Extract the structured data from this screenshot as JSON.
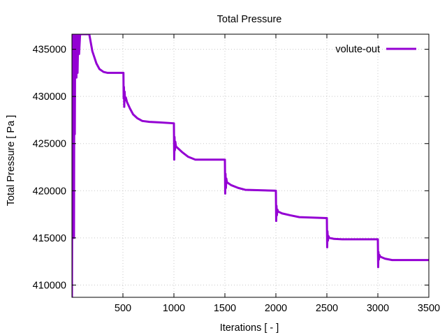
{
  "chart_data": {
    "type": "line",
    "title": "Total Pressure",
    "xlabel": "Iterations [ - ]",
    "ylabel": "Total Pressure [ Pa ]",
    "xlim": [
      0,
      3500
    ],
    "ylim": [
      408700,
      436600
    ],
    "grid": true,
    "legend_position": "top-right",
    "x_ticks": [
      {
        "value": 500,
        "label": "500"
      },
      {
        "value": 1000,
        "label": "1000"
      },
      {
        "value": 1500,
        "label": "1500"
      },
      {
        "value": 2000,
        "label": "2000"
      },
      {
        "value": 2500,
        "label": "2500"
      },
      {
        "value": 3000,
        "label": "3000"
      },
      {
        "value": 3500,
        "label": "3500"
      }
    ],
    "y_ticks": [
      {
        "value": 410000,
        "label": "410000"
      },
      {
        "value": 415000,
        "label": "415000"
      },
      {
        "value": 420000,
        "label": "420000"
      },
      {
        "value": 425000,
        "label": "425000"
      },
      {
        "value": 430000,
        "label": "430000"
      },
      {
        "value": 435000,
        "label": "435000"
      }
    ],
    "series": [
      {
        "name": "volute-out",
        "color": "#9400d3",
        "points": [
          [
            0,
            408700
          ],
          [
            8,
            436600
          ],
          [
            12,
            420000
          ],
          [
            16,
            436600
          ],
          [
            20,
            415000
          ],
          [
            24,
            436600
          ],
          [
            28,
            426000
          ],
          [
            32,
            436600
          ],
          [
            36,
            432000
          ],
          [
            40,
            436600
          ],
          [
            44,
            432000
          ],
          [
            48,
            436600
          ],
          [
            55,
            432500
          ],
          [
            62,
            436600
          ],
          [
            70,
            434500
          ],
          [
            80,
            436600
          ],
          [
            170,
            436600
          ],
          [
            200,
            434800
          ],
          [
            240,
            433500
          ],
          [
            270,
            432900
          ],
          [
            310,
            432600
          ],
          [
            350,
            432500
          ],
          [
            505,
            432500
          ],
          [
            507,
            429800
          ],
          [
            510,
            431000
          ],
          [
            513,
            428900
          ],
          [
            517,
            430500
          ],
          [
            521,
            429600
          ],
          [
            528,
            429900
          ],
          [
            540,
            429400
          ],
          [
            570,
            428700
          ],
          [
            600,
            428100
          ],
          [
            640,
            427700
          ],
          [
            690,
            427400
          ],
          [
            760,
            427300
          ],
          [
            860,
            427250
          ],
          [
            1000,
            427150
          ],
          [
            1003,
            423300
          ],
          [
            1006,
            425700
          ],
          [
            1010,
            424300
          ],
          [
            1014,
            425200
          ],
          [
            1020,
            424700
          ],
          [
            1040,
            424500
          ],
          [
            1080,
            424100
          ],
          [
            1140,
            423600
          ],
          [
            1210,
            423300
          ],
          [
            1300,
            423300
          ],
          [
            1500,
            423300
          ],
          [
            1503,
            419700
          ],
          [
            1506,
            421800
          ],
          [
            1510,
            420300
          ],
          [
            1514,
            421300
          ],
          [
            1520,
            420900
          ],
          [
            1560,
            420600
          ],
          [
            1630,
            420300
          ],
          [
            1700,
            420100
          ],
          [
            2000,
            420000
          ],
          [
            2003,
            416800
          ],
          [
            2006,
            418400
          ],
          [
            2010,
            417400
          ],
          [
            2015,
            418000
          ],
          [
            2022,
            417800
          ],
          [
            2060,
            417600
          ],
          [
            2140,
            417400
          ],
          [
            2230,
            417200
          ],
          [
            2500,
            417100
          ],
          [
            2503,
            414000
          ],
          [
            2506,
            415700
          ],
          [
            2510,
            414700
          ],
          [
            2515,
            415200
          ],
          [
            2525,
            415000
          ],
          [
            2570,
            414900
          ],
          [
            2650,
            414850
          ],
          [
            3000,
            414850
          ],
          [
            3003,
            411900
          ],
          [
            3006,
            413500
          ],
          [
            3010,
            412700
          ],
          [
            3015,
            413200
          ],
          [
            3025,
            413000
          ],
          [
            3070,
            412800
          ],
          [
            3140,
            412650
          ],
          [
            3500,
            412650
          ]
        ]
      }
    ]
  }
}
